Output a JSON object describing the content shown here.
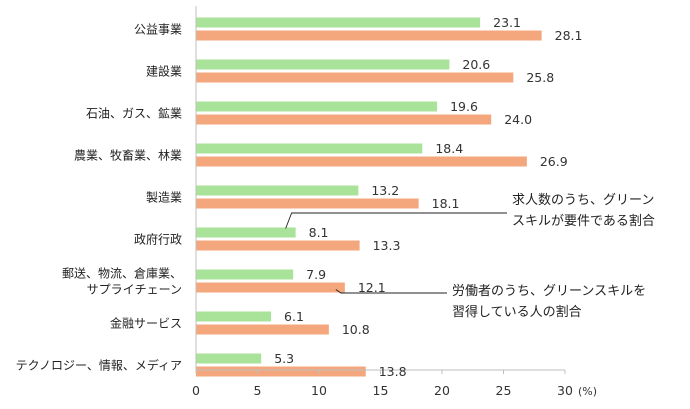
{
  "chart_data": {
    "type": "bar",
    "orientation": "horizontal",
    "categories": [
      [
        "公益事業"
      ],
      [
        "建設業"
      ],
      [
        "石油、ガス、鉱業"
      ],
      [
        "農業、牧畜業、林業"
      ],
      [
        "製造業"
      ],
      [
        "政府行政"
      ],
      [
        "郵送、物流、倉庫業、",
        "サプライチェーン"
      ],
      [
        "金融サービス"
      ],
      [
        "テクノロジー、情報、メディア"
      ]
    ],
    "series": [
      {
        "color": "#a9e39a",
        "values": [
          23.1,
          20.6,
          19.6,
          18.4,
          13.2,
          8.1,
          7.9,
          6.1,
          5.3
        ]
      },
      {
        "color": "#f4a77c",
        "values": [
          28.1,
          25.8,
          24.0,
          26.9,
          18.1,
          13.3,
          12.1,
          10.8,
          13.8
        ]
      }
    ],
    "value_labels": [
      [
        "23.1",
        "20.6",
        "19.6",
        "18.4",
        "13.2",
        "8.1",
        "7.9",
        "6.1",
        "5.3"
      ],
      [
        "28.1",
        "25.8",
        "24.0",
        "26.9",
        "18.1",
        "13.3",
        "12.1",
        "10.8",
        "13.8"
      ]
    ],
    "xlim": [
      0,
      30
    ],
    "xticks": [
      0,
      5,
      10,
      15,
      20,
      25,
      30
    ],
    "x_unit": "(%)",
    "annotations": [
      {
        "series": 0,
        "category": 5,
        "lines": [
          "求人数のうち、グリーン",
          "スキルが要件である割合"
        ]
      },
      {
        "series": 1,
        "category": 6,
        "lines": [
          "労働者のうち、グリーンスキルを",
          "習得している人の割合"
        ]
      }
    ],
    "grid": false,
    "axis_color": "#bfbfbf"
  }
}
